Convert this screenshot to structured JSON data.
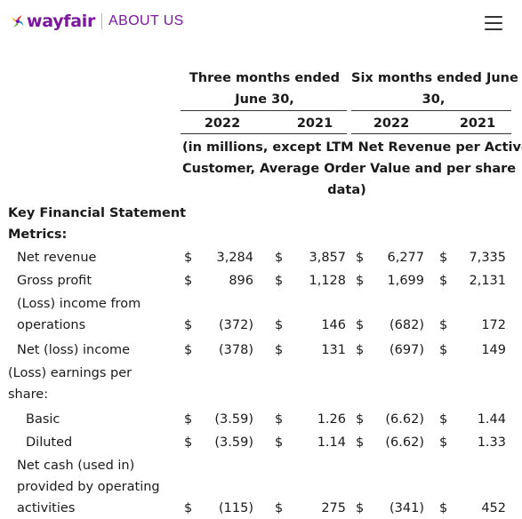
{
  "header": {
    "logo_text": "wayfair",
    "section_label": "ABOUT US",
    "menu_icon": "hamburger-menu-icon",
    "brand_color": "#7b189f"
  },
  "table": {
    "period_headers": [
      "Three months ended June 30,",
      "Six months ended June 30,"
    ],
    "period_header_lines": [
      [
        "Three months ended",
        "June 30,"
      ],
      [
        "Six months ended June",
        "30,"
      ]
    ],
    "years": [
      "2022",
      "2021",
      "2022",
      "2021"
    ],
    "units_note_lines": [
      "(in millions, except LTM Net Revenue per Active",
      "Customer, Average Order Value and per share",
      "data)"
    ],
    "section_title_lines": [
      "Key Financial Statement",
      "Metrics:"
    ],
    "currency_symbol": "$",
    "rows": [
      {
        "label_lines": [
          "Net revenue"
        ],
        "indent": 1,
        "values": [
          "3,284",
          "3,857",
          "6,277",
          "7,335"
        ]
      },
      {
        "label_lines": [
          "Gross profit"
        ],
        "indent": 1,
        "values": [
          "896",
          "1,128",
          "1,699",
          "2,131"
        ]
      },
      {
        "label_lines": [
          "(Loss) income from",
          "operations"
        ],
        "indent": 1,
        "values": [
          "(372)",
          "146",
          "(682)",
          "172"
        ]
      },
      {
        "label_lines": [
          "Net (loss) income"
        ],
        "indent": 1,
        "values": [
          "(378)",
          "131",
          "(697)",
          "149"
        ]
      },
      {
        "label_lines": [
          "(Loss) earnings per",
          "share:"
        ],
        "indent": 0,
        "values": null
      },
      {
        "label_lines": [
          "Basic"
        ],
        "indent": 2,
        "values": [
          "(3.59)",
          "1.26",
          "(6.62)",
          "1.44"
        ]
      },
      {
        "label_lines": [
          "Diluted"
        ],
        "indent": 2,
        "values": [
          "(3.59)",
          "1.14",
          "(6.62)",
          "1.33"
        ]
      },
      {
        "label_lines": [
          "Net cash (used in)",
          "provided by operating",
          "activities"
        ],
        "indent": 1,
        "values": [
          "(115)",
          "275",
          "(341)",
          "452"
        ]
      }
    ]
  }
}
